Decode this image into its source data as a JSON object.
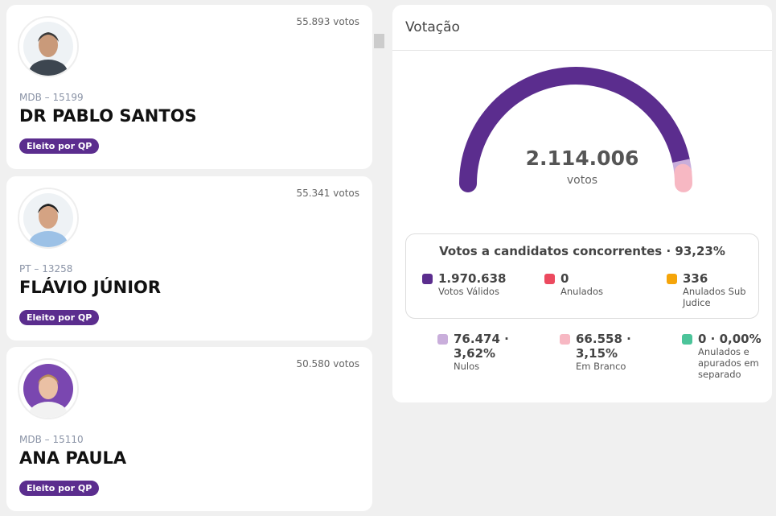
{
  "candidates": [
    {
      "votes": "55.893 votos",
      "party": "MDB – 15199",
      "name": "DR PABLO SANTOS",
      "status": "Eleito por QP"
    },
    {
      "votes": "55.341 votos",
      "party": "PT – 13258",
      "name": "FLÁVIO JÚNIOR",
      "status": "Eleito por QP"
    },
    {
      "votes": "50.580 votos",
      "party": "MDB – 15110",
      "name": "ANA PAULA",
      "status": "Eleito por QP"
    }
  ],
  "voting": {
    "title": "Votação",
    "total": "2.114.006",
    "total_unit": "votos",
    "summary": {
      "title": "Votos a candidatos concorrentes · 93,23%",
      "items": [
        {
          "value": "1.970.638",
          "label": "Votos Válidos",
          "color": "#5b2d8e"
        },
        {
          "value": "0",
          "label": "Anulados",
          "color": "#ec4a5f"
        },
        {
          "value": "336",
          "label": "Anulados Sub Judice",
          "color": "#f5a50a"
        }
      ]
    },
    "others": [
      {
        "value": "76.474 · 3,62%",
        "label": "Nulos",
        "color": "#c9aedb"
      },
      {
        "value": "66.558 · 3,15%",
        "label": "Em Branco",
        "color": "#f7b8c3"
      },
      {
        "value": "0 · 0,00%",
        "label": "Anulados e apurados em separado",
        "color": "#4cc49a"
      }
    ]
  }
}
